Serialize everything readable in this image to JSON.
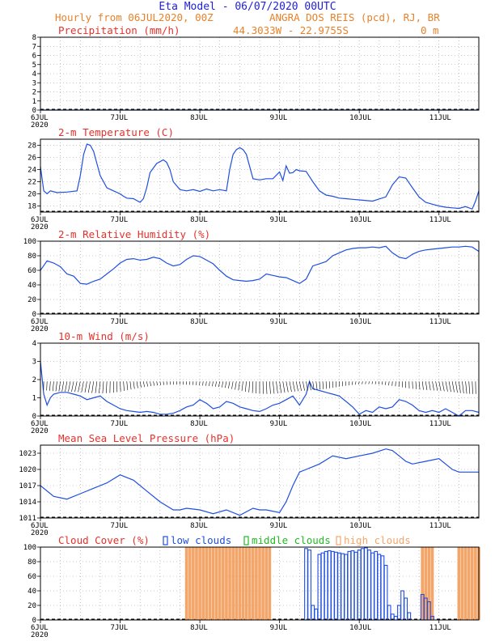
{
  "header": {
    "title": "Eta Model - 06/07/2020 00UTC",
    "subtitle_left": "Hourly from 06JUL2020, 00Z",
    "subtitle_station": "ANGRA DOS REIS (pcd), RJ, BR",
    "coords": "44.3033W - 22.9755S",
    "elevation": "0   m"
  },
  "x_axis": {
    "hours_total": 132,
    "tick_labels": [
      "6JUL",
      "7JUL",
      "8JUL",
      "9JUL",
      "10JUL",
      "11JUL"
    ],
    "year_label": "2020"
  },
  "colors": {
    "series_blue": "#1f4fe0",
    "title_red": "#e8302a",
    "header_blue": "#1f1fd6",
    "header_orange": "#e8822a",
    "high_cloud": "#f4a66a",
    "middle_cloud": "#22bb22",
    "grid": "#999999"
  },
  "chart_data": [
    {
      "type": "line",
      "title": "Precipitation (mm/h)",
      "ylim": [
        0,
        8
      ],
      "yticks": [
        0,
        1,
        2,
        3,
        4,
        5,
        6,
        7,
        8
      ],
      "x": [
        0,
        24,
        48,
        72,
        96,
        120,
        132
      ],
      "y": [
        0,
        0,
        0,
        0,
        0,
        0,
        0
      ]
    },
    {
      "type": "line",
      "title": "2-m Temperature (C)",
      "ylim": [
        17,
        29
      ],
      "yticks": [
        18,
        20,
        22,
        24,
        26,
        28
      ],
      "x": [
        0,
        1,
        2,
        3,
        5,
        8,
        11,
        12,
        13,
        14,
        15,
        16,
        17,
        18,
        20,
        22,
        24,
        25,
        26,
        28,
        30,
        31,
        32,
        33,
        35,
        37,
        38,
        39,
        40,
        42,
        44,
        46,
        48,
        50,
        52,
        54,
        56,
        57,
        58,
        59,
        60,
        61,
        62,
        63,
        64,
        66,
        68,
        70,
        72,
        73,
        74,
        75,
        76,
        77,
        78,
        80,
        82,
        84,
        86,
        88,
        90,
        92,
        94,
        96,
        100,
        104,
        106,
        108,
        110,
        112,
        114,
        116,
        118,
        120,
        122,
        124,
        126,
        128,
        130,
        131,
        132
      ],
      "y": [
        24.5,
        20.5,
        20.0,
        20.5,
        20.2,
        20.3,
        20.5,
        23.0,
        26.5,
        28.2,
        28.0,
        27.0,
        25.0,
        23.0,
        21.0,
        20.5,
        20.0,
        19.6,
        19.3,
        19.2,
        18.6,
        19.2,
        21.0,
        23.5,
        25.0,
        25.6,
        25.2,
        24.0,
        22.0,
        20.7,
        20.5,
        20.7,
        20.4,
        20.8,
        20.5,
        20.7,
        20.5,
        24.0,
        26.5,
        27.3,
        27.6,
        27.3,
        26.5,
        24.5,
        22.5,
        22.3,
        22.5,
        22.5,
        23.6,
        22.2,
        24.6,
        23.4,
        23.5,
        24.0,
        23.8,
        23.7,
        22.0,
        20.5,
        19.8,
        19.6,
        19.3,
        19.2,
        19.1,
        19.0,
        18.8,
        19.5,
        21.5,
        22.8,
        22.6,
        21.0,
        19.5,
        18.6,
        18.3,
        18.0,
        17.8,
        17.7,
        17.6,
        17.9,
        17.5,
        18.8,
        20.5
      ]
    },
    {
      "type": "line",
      "title": "2-m Relative Humidity (%)",
      "ylim": [
        0,
        100
      ],
      "yticks": [
        0,
        20,
        40,
        60,
        80,
        100
      ],
      "x": [
        0,
        2,
        4,
        6,
        8,
        10,
        12,
        14,
        16,
        18,
        20,
        22,
        24,
        26,
        28,
        30,
        32,
        34,
        36,
        38,
        40,
        42,
        44,
        46,
        48,
        50,
        52,
        54,
        56,
        58,
        60,
        62,
        64,
        66,
        68,
        70,
        72,
        74,
        76,
        78,
        80,
        82,
        84,
        86,
        88,
        90,
        92,
        94,
        96,
        98,
        100,
        102,
        104,
        106,
        108,
        110,
        112,
        114,
        116,
        118,
        120,
        122,
        124,
        126,
        128,
        130,
        132
      ],
      "y": [
        60,
        73,
        70,
        65,
        55,
        52,
        42,
        41,
        45,
        48,
        55,
        62,
        70,
        75,
        76,
        74,
        75,
        78,
        76,
        70,
        66,
        68,
        75,
        80,
        79,
        74,
        69,
        60,
        52,
        47,
        46,
        45,
        46,
        48,
        55,
        53,
        51,
        50,
        46,
        42,
        48,
        66,
        69,
        72,
        80,
        84,
        88,
        90,
        91,
        91,
        92,
        91,
        93,
        84,
        78,
        76,
        82,
        86,
        88,
        89,
        90,
        91,
        92,
        92,
        93,
        92,
        86
      ]
    },
    {
      "type": "line",
      "title": "10-m Wind (m/s)",
      "ylim": [
        0,
        4
      ],
      "yticks": [
        0,
        1,
        2,
        3,
        4
      ],
      "x": [
        0,
        1,
        2,
        3,
        4,
        6,
        8,
        10,
        12,
        14,
        16,
        18,
        20,
        22,
        24,
        26,
        28,
        30,
        32,
        34,
        36,
        38,
        40,
        42,
        44,
        46,
        48,
        50,
        52,
        54,
        56,
        58,
        60,
        62,
        64,
        66,
        68,
        70,
        72,
        74,
        76,
        78,
        80,
        81,
        82,
        84,
        86,
        88,
        90,
        92,
        94,
        96,
        98,
        100,
        102,
        104,
        106,
        108,
        110,
        112,
        114,
        116,
        118,
        120,
        122,
        124,
        126,
        128,
        130,
        132
      ],
      "y": [
        3.0,
        1.2,
        0.6,
        1.0,
        1.2,
        1.3,
        1.3,
        1.2,
        1.1,
        0.9,
        1.0,
        1.1,
        0.8,
        0.6,
        0.4,
        0.3,
        0.25,
        0.2,
        0.25,
        0.2,
        0.1,
        0.1,
        0.15,
        0.3,
        0.5,
        0.6,
        0.9,
        0.7,
        0.4,
        0.5,
        0.8,
        0.7,
        0.5,
        0.4,
        0.3,
        0.25,
        0.4,
        0.6,
        0.7,
        0.9,
        1.1,
        0.6,
        1.2,
        1.9,
        1.5,
        1.4,
        1.3,
        1.2,
        1.1,
        0.8,
        0.5,
        0.1,
        0.3,
        0.2,
        0.5,
        0.4,
        0.5,
        0.9,
        0.8,
        0.6,
        0.3,
        0.2,
        0.3,
        0.2,
        0.4,
        0.2,
        0.0,
        0.3,
        0.3,
        0.2
      ]
    },
    {
      "type": "line",
      "title": "Mean Sea Level Pressure (hPa)",
      "ylim": [
        1011,
        1024.5
      ],
      "yticks": [
        1011,
        1014,
        1017,
        1020,
        1023
      ],
      "x": [
        0,
        4,
        8,
        12,
        16,
        20,
        24,
        28,
        32,
        36,
        40,
        42,
        44,
        48,
        52,
        56,
        60,
        64,
        66,
        68,
        72,
        74,
        76,
        78,
        80,
        82,
        84,
        88,
        92,
        96,
        100,
        104,
        106,
        108,
        110,
        112,
        116,
        120,
        122,
        124,
        126,
        128,
        130,
        132
      ],
      "y": [
        1017,
        1015,
        1014.5,
        1015.5,
        1016.5,
        1017.5,
        1019.0,
        1018.0,
        1016.0,
        1014.0,
        1012.5,
        1012.5,
        1012.8,
        1012.5,
        1011.8,
        1012.5,
        1011.5,
        1012.8,
        1012.5,
        1012.5,
        1012.0,
        1014.0,
        1017.0,
        1019.5,
        1020.0,
        1020.5,
        1021.0,
        1022.5,
        1022.0,
        1022.5,
        1023.0,
        1023.8,
        1023.5,
        1022.5,
        1021.5,
        1021.0,
        1021.5,
        1022.0,
        1021.0,
        1020.0,
        1019.5,
        1019.5,
        1019.5,
        1019.5
      ]
    },
    {
      "type": "bar",
      "title": "Cloud Cover (%)",
      "legend": [
        "low clouds",
        "middle clouds",
        "high clouds"
      ],
      "ylim": [
        0,
        100
      ],
      "yticks": [
        0,
        20,
        40,
        60,
        80,
        100
      ],
      "high_clouds": {
        "hours": [
          [
            44,
            69
          ],
          [
            115,
            118
          ],
          [
            126,
            132
          ]
        ],
        "value": 100
      },
      "low_clouds": {
        "hours": [
          80,
          81,
          82,
          83,
          84,
          85,
          86,
          87,
          88,
          89,
          90,
          91,
          92,
          93,
          94,
          95,
          96,
          97,
          98,
          99,
          100,
          101,
          102,
          103,
          104,
          105,
          106,
          107,
          108,
          109,
          110,
          111,
          112,
          113,
          114,
          115,
          116,
          117,
          118
        ],
        "values": [
          98,
          96,
          20,
          15,
          90,
          92,
          94,
          95,
          94,
          93,
          92,
          91,
          90,
          94,
          95,
          93,
          96,
          98,
          99,
          96,
          92,
          94,
          90,
          88,
          75,
          20,
          8,
          5,
          20,
          40,
          30,
          10,
          0,
          0,
          0,
          35,
          30,
          25,
          5
        ]
      }
    }
  ]
}
